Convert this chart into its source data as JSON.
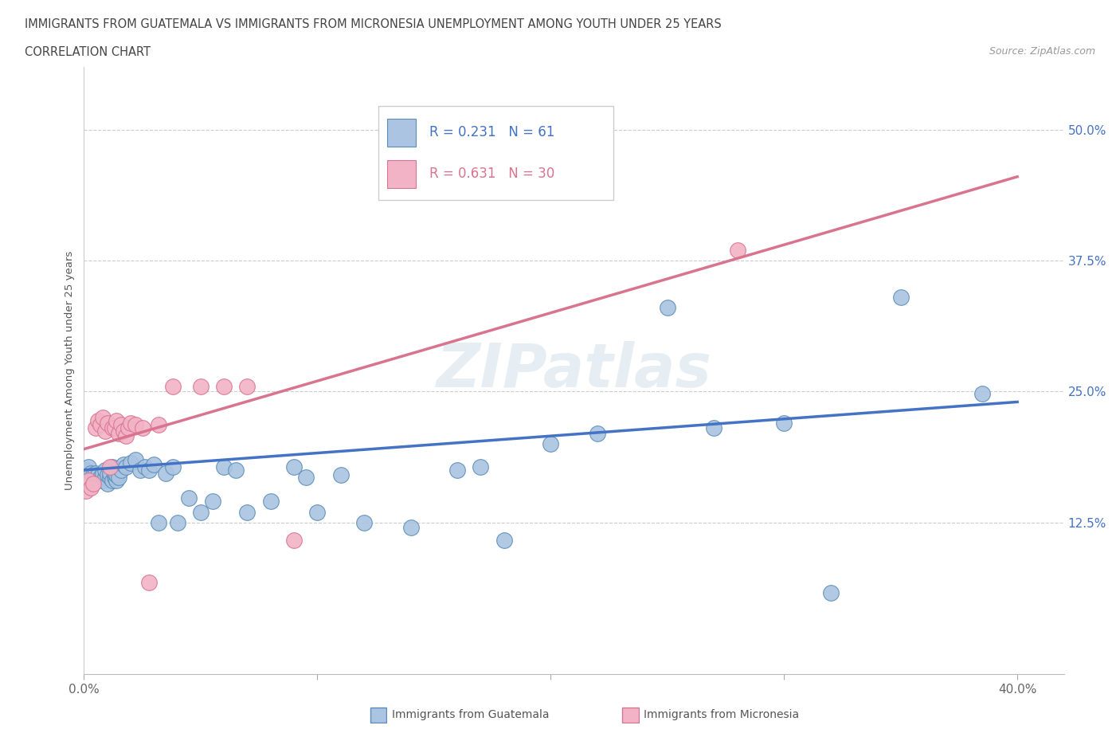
{
  "title_line1": "IMMIGRANTS FROM GUATEMALA VS IMMIGRANTS FROM MICRONESIA UNEMPLOYMENT AMONG YOUTH UNDER 25 YEARS",
  "title_line2": "CORRELATION CHART",
  "source_text": "Source: ZipAtlas.com",
  "ylabel": "Unemployment Among Youth under 25 years",
  "xlim": [
    0.0,
    0.42
  ],
  "ylim": [
    -0.02,
    0.56
  ],
  "yticks": [
    0.125,
    0.25,
    0.375,
    0.5
  ],
  "ytick_labels": [
    "12.5%",
    "25.0%",
    "37.5%",
    "50.0%"
  ],
  "xticks": [
    0.0,
    0.1,
    0.2,
    0.3,
    0.4
  ],
  "xtick_labels": [
    "0.0%",
    "",
    "",
    "",
    "40.0%"
  ],
  "watermark": "ZIPatlas",
  "guatemala_color": "#aac4e2",
  "guatemala_edge_color": "#5b8db8",
  "guatemala_line_color": "#4472c4",
  "micronesia_color": "#f2b3c6",
  "micronesia_edge_color": "#d9748e",
  "micronesia_line_color": "#d9748e",
  "R_guatemala": 0.231,
  "N_guatemala": 61,
  "R_micronesia": 0.631,
  "N_micronesia": 30,
  "guatemala_x": [
    0.001,
    0.002,
    0.003,
    0.004,
    0.005,
    0.005,
    0.006,
    0.006,
    0.007,
    0.008,
    0.008,
    0.009,
    0.009,
    0.01,
    0.01,
    0.011,
    0.011,
    0.012,
    0.012,
    0.013,
    0.013,
    0.014,
    0.014,
    0.015,
    0.016,
    0.017,
    0.018,
    0.02,
    0.022,
    0.024,
    0.026,
    0.028,
    0.03,
    0.032,
    0.035,
    0.038,
    0.04,
    0.045,
    0.05,
    0.055,
    0.06,
    0.065,
    0.07,
    0.08,
    0.09,
    0.095,
    0.1,
    0.11,
    0.12,
    0.14,
    0.16,
    0.17,
    0.18,
    0.2,
    0.22,
    0.25,
    0.27,
    0.3,
    0.32,
    0.35,
    0.385
  ],
  "guatemala_y": [
    0.175,
    0.178,
    0.172,
    0.17,
    0.168,
    0.172,
    0.165,
    0.17,
    0.168,
    0.165,
    0.172,
    0.168,
    0.175,
    0.162,
    0.17,
    0.168,
    0.172,
    0.165,
    0.178,
    0.168,
    0.172,
    0.165,
    0.17,
    0.168,
    0.175,
    0.18,
    0.178,
    0.182,
    0.185,
    0.175,
    0.178,
    0.175,
    0.18,
    0.125,
    0.172,
    0.178,
    0.125,
    0.148,
    0.135,
    0.145,
    0.178,
    0.175,
    0.135,
    0.145,
    0.178,
    0.168,
    0.135,
    0.17,
    0.125,
    0.12,
    0.175,
    0.178,
    0.108,
    0.2,
    0.21,
    0.33,
    0.215,
    0.22,
    0.058,
    0.34,
    0.248
  ],
  "micronesia_x": [
    0.001,
    0.002,
    0.003,
    0.004,
    0.005,
    0.006,
    0.007,
    0.008,
    0.009,
    0.01,
    0.011,
    0.012,
    0.013,
    0.014,
    0.015,
    0.016,
    0.017,
    0.018,
    0.019,
    0.02,
    0.022,
    0.025,
    0.028,
    0.032,
    0.038,
    0.05,
    0.06,
    0.07,
    0.09,
    0.28
  ],
  "micronesia_y": [
    0.155,
    0.165,
    0.158,
    0.162,
    0.215,
    0.222,
    0.218,
    0.225,
    0.212,
    0.22,
    0.178,
    0.215,
    0.215,
    0.222,
    0.21,
    0.218,
    0.212,
    0.208,
    0.215,
    0.22,
    0.218,
    0.215,
    0.068,
    0.218,
    0.255,
    0.255,
    0.255,
    0.255,
    0.108,
    0.385
  ],
  "blue_line_y0": 0.175,
  "blue_line_y1": 0.24,
  "pink_line_y0": 0.195,
  "pink_line_y1": 0.455
}
